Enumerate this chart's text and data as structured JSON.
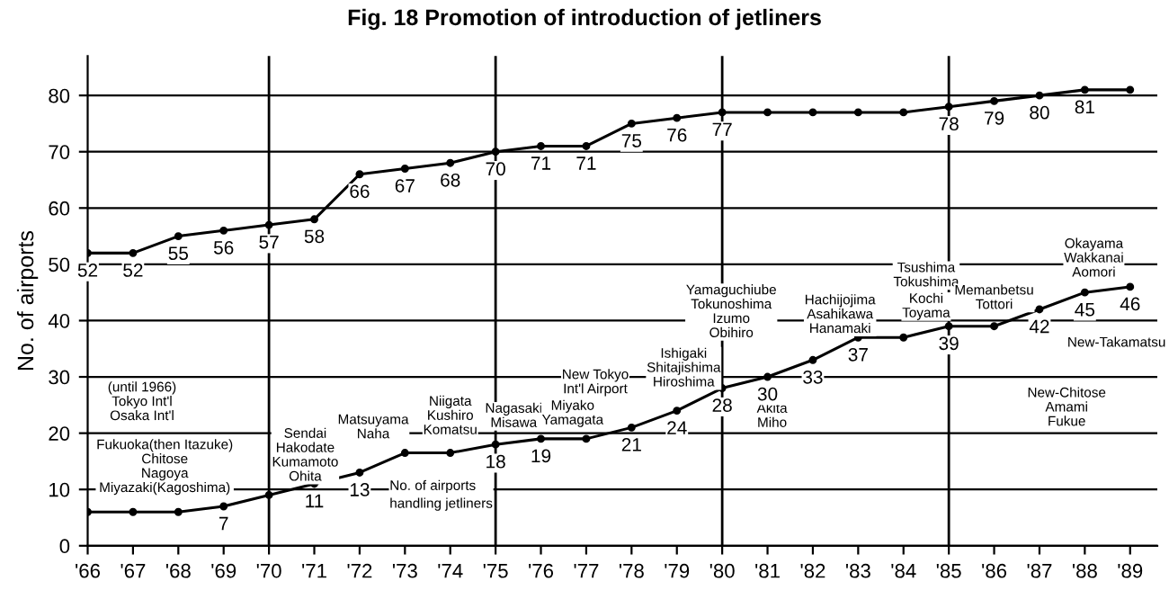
{
  "chart_data": {
    "type": "line",
    "title": "Fig. 18 Promotion of introduction of jetliners",
    "ylabel": "No. of airports",
    "x": [
      1966,
      1967,
      1968,
      1969,
      1970,
      1971,
      1972,
      1973,
      1974,
      1975,
      1976,
      1977,
      1978,
      1979,
      1980,
      1981,
      1982,
      1983,
      1984,
      1985,
      1986,
      1987,
      1988,
      1989
    ],
    "series": [
      {
        "color": "#000000",
        "values": [
          52,
          52,
          55,
          56,
          57,
          58,
          66,
          67,
          68,
          70,
          71,
          71,
          75,
          76,
          77,
          77,
          77,
          77,
          77,
          78,
          79,
          80,
          81,
          81
        ],
        "value_labels": [
          "52",
          "52",
          "55",
          "56",
          "57",
          "58",
          "66",
          "67",
          "68",
          "70",
          "71",
          "71",
          "75",
          "76",
          "77",
          null,
          null,
          null,
          null,
          "78",
          "79",
          "80",
          "81",
          null
        ]
      },
      {
        "name": "No. of airports\nhandling jetliners",
        "color": "#000000",
        "values": [
          6,
          6,
          6,
          7,
          9,
          11,
          13,
          16.5,
          16.5,
          18,
          19,
          19,
          21,
          24,
          28,
          30,
          33,
          37,
          37,
          39,
          39,
          42,
          45,
          46
        ],
        "value_labels": [
          null,
          null,
          null,
          "7",
          null,
          "11",
          "13",
          null,
          null,
          "18",
          "19",
          null,
          "21",
          "24",
          "28",
          "30",
          "33",
          "37",
          null,
          "39",
          null,
          "42",
          "45",
          "46"
        ]
      }
    ],
    "xlim": [
      1966,
      1989.6
    ],
    "ylim": [
      0,
      87
    ],
    "xticks": [
      {
        "value": 1966,
        "label": "'66"
      },
      {
        "value": 1967,
        "label": "'67"
      },
      {
        "value": 1968,
        "label": "'68"
      },
      {
        "value": 1969,
        "label": "'69"
      },
      {
        "value": 1970,
        "label": "'70"
      },
      {
        "value": 1971,
        "label": "'71"
      },
      {
        "value": 1972,
        "label": "'72"
      },
      {
        "value": 1973,
        "label": "'73"
      },
      {
        "value": 1974,
        "label": "'74"
      },
      {
        "value": 1975,
        "label": "'75"
      },
      {
        "value": 1976,
        "label": "'76"
      },
      {
        "value": 1977,
        "label": "'77"
      },
      {
        "value": 1978,
        "label": "'78"
      },
      {
        "value": 1979,
        "label": "'79"
      },
      {
        "value": 1980,
        "label": "'80"
      },
      {
        "value": 1981,
        "label": "'81"
      },
      {
        "value": 1982,
        "label": "'82"
      },
      {
        "value": 1983,
        "label": "'83"
      },
      {
        "value": 1984,
        "label": "'84"
      },
      {
        "value": 1985,
        "label": "'85"
      },
      {
        "value": 1986,
        "label": "'86"
      },
      {
        "value": 1987,
        "label": "'87"
      },
      {
        "value": 1988,
        "label": "'88"
      },
      {
        "value": 1989,
        "label": "'89"
      }
    ],
    "yticks": [
      0,
      10,
      20,
      30,
      40,
      50,
      60,
      70,
      80
    ],
    "grid": "y",
    "marker": "circle",
    "line_style": "solid",
    "ref_lines": [
      {
        "axis": "x",
        "value": 1970
      },
      {
        "axis": "x",
        "value": 1975
      },
      {
        "axis": "x",
        "value": 1980
      },
      {
        "axis": "x",
        "value": 1985
      }
    ],
    "annotations": [
      "(until 1966)\nTokyo Int'l\nOsaka Int'l",
      "Fukuoka(then Itazuke)\nChitose\nNagoya\nMiyazaki(Kagoshima)",
      "Sendai\nHakodate\nKumamoto\nOhita",
      "Matsuyama\nNaha",
      "Niigata\nKushiro\nKomatsu",
      "Nagasaki\nMisawa",
      "Miyako\nYamagata",
      "New Tokyo\nInt'l Airport",
      "Ishigaki\nShitajishima\nHiroshima",
      "Yamaguchiube\nTokunoshima\nIzumo\nObihiro",
      "Akita\nMiho",
      "Hachijojima\nAsahikawa\nHanamaki",
      "Tsushima\nTokushima",
      "Kochi\nToyama",
      "Memanbetsu\nTottori",
      "Okayama\nWakkanai\nAomori",
      "New-Takamatsu",
      "New-Chitose\nAmami\nFukue"
    ]
  }
}
